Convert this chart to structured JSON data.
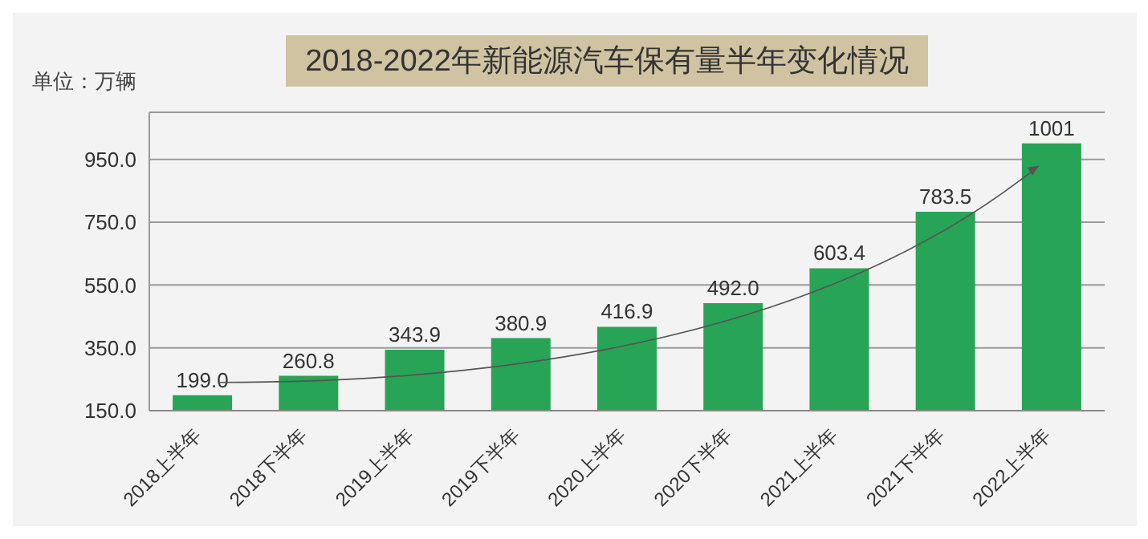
{
  "chart_data": {
    "type": "bar",
    "title": "2018-2022年新能源汽车保有量半年变化情况",
    "ylabel": "单位：万辆",
    "categories": [
      "2018上半年",
      "2018下半年",
      "2019上半年",
      "2019下半年",
      "2020上半年",
      "2020下半年",
      "2021上半年",
      "2021下半年",
      "2022上半年"
    ],
    "values": [
      199.0,
      260.8,
      343.9,
      380.9,
      416.9,
      492.0,
      603.4,
      783.5,
      1001
    ],
    "value_labels": [
      "199.0",
      "260.8",
      "343.9",
      "380.9",
      "416.9",
      "492.0",
      "603.4",
      "783.5",
      "1001"
    ],
    "color": "#27a456",
    "ylim": [
      150,
      1100
    ],
    "yticks": [
      {
        "value": 150,
        "label": "150.0"
      },
      {
        "value": 350,
        "label": "350.0"
      },
      {
        "value": 550,
        "label": "550.0"
      },
      {
        "value": 750,
        "label": "750.0"
      },
      {
        "value": 950,
        "label": "950.0"
      }
    ],
    "grid": "y"
  }
}
